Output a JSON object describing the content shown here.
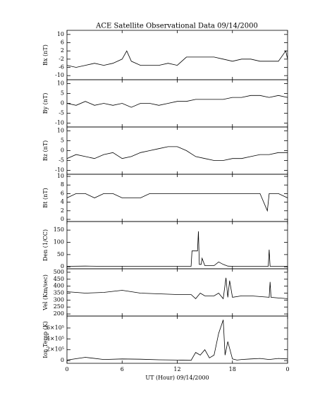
{
  "chart_data": [
    {
      "type": "line",
      "title": "ACE Satellite Observational Data  09/14/2000",
      "ylabel": "Bx (nT)",
      "xlim": [
        0,
        24
      ],
      "ylim": [
        -12,
        12
      ],
      "yticks": [
        10,
        6,
        2,
        -2,
        -6,
        -10
      ],
      "x": [
        0,
        1,
        2,
        3,
        4,
        5,
        6,
        6.5,
        7,
        8,
        9,
        10,
        11,
        12,
        13,
        14,
        15,
        16,
        17,
        18,
        19,
        20,
        21,
        22,
        23,
        23.8,
        24
      ],
      "values": [
        -5,
        -6,
        -5,
        -4,
        -5,
        -4,
        -2,
        2,
        -3,
        -5,
        -5,
        -5,
        -4,
        -5,
        -1,
        -1,
        -1,
        -1,
        -2,
        -3,
        -2,
        -2,
        -3,
        -3,
        -3,
        2,
        -2
      ]
    },
    {
      "type": "line",
      "ylabel": "By (nT)",
      "xlim": [
        0,
        24
      ],
      "ylim": [
        -12,
        12
      ],
      "yticks": [
        10,
        5,
        0,
        -5,
        -10
      ],
      "x": [
        0,
        1,
        2,
        3,
        4,
        5,
        6,
        7,
        8,
        9,
        10,
        11,
        12,
        13,
        14,
        15,
        16,
        17,
        18,
        19,
        20,
        21,
        22,
        23,
        24
      ],
      "values": [
        0,
        -1,
        1,
        -1,
        0,
        -1,
        0,
        -2,
        0,
        0,
        -1,
        0,
        1,
        1,
        2,
        2,
        2,
        2,
        3,
        3,
        4,
        4,
        3,
        4,
        3
      ]
    },
    {
      "type": "line",
      "ylabel": "Bz (nT)",
      "xlim": [
        0,
        24
      ],
      "ylim": [
        -12,
        12
      ],
      "yticks": [
        10,
        5,
        0,
        -5,
        -10
      ],
      "x": [
        0,
        1,
        2,
        3,
        4,
        5,
        6,
        7,
        8,
        9,
        10,
        11,
        12,
        13,
        14,
        15,
        16,
        17,
        18,
        19,
        20,
        21,
        22,
        23,
        24
      ],
      "values": [
        -4,
        -2,
        -3,
        -4,
        -2,
        -1,
        -4,
        -3,
        -1,
        0,
        1,
        2,
        2,
        0,
        -3,
        -4,
        -5,
        -5,
        -4,
        -4,
        -3,
        -2,
        -2,
        -1,
        -1
      ]
    },
    {
      "type": "line",
      "ylabel": "Bt (nT)",
      "xlim": [
        0,
        24
      ],
      "ylim": [
        -0.5,
        10.5
      ],
      "yticks": [
        0,
        2,
        4,
        6,
        8,
        10
      ],
      "x": [
        0,
        1,
        2,
        3,
        4,
        5,
        6,
        7,
        8,
        9,
        10,
        11,
        12,
        13,
        14,
        15,
        16,
        17,
        18,
        19,
        20,
        21,
        21.8,
        22,
        23,
        24
      ],
      "values": [
        5,
        6,
        6,
        5,
        6,
        6,
        5,
        5,
        5,
        6,
        6,
        6,
        6,
        6,
        6,
        6,
        6,
        6,
        6,
        6,
        6,
        6,
        2,
        6,
        6,
        5
      ]
    },
    {
      "type": "line",
      "ylabel": "Den (1/CC)",
      "xlim": [
        0,
        24
      ],
      "ylim": [
        -8,
        185
      ],
      "yticks": [
        0,
        50,
        100,
        150
      ],
      "x": [
        0,
        2,
        4,
        6,
        8,
        10,
        12,
        13.5,
        13.6,
        14.2,
        14.3,
        14.4,
        14.6,
        14.7,
        15,
        15.5,
        16,
        16.5,
        17,
        17.5,
        18,
        19,
        20,
        21,
        21.9,
        22,
        22.1,
        23,
        24
      ],
      "values": [
        2,
        3,
        2,
        2,
        2,
        2,
        2,
        2,
        65,
        65,
        145,
        10,
        10,
        35,
        5,
        5,
        5,
        20,
        10,
        3,
        2,
        2,
        2,
        2,
        2,
        70,
        2,
        2,
        2
      ]
    },
    {
      "type": "line",
      "ylabel": "Vel (Km/sec)",
      "xlim": [
        0,
        24
      ],
      "ylim": [
        185,
        525
      ],
      "yticks": [
        200,
        250,
        300,
        350,
        400,
        450,
        500
      ],
      "x": [
        0,
        2,
        4,
        6,
        8,
        10,
        12,
        13.5,
        14,
        14.5,
        15,
        15.5,
        16,
        16.5,
        17,
        17.3,
        17.5,
        17.7,
        18,
        19,
        20,
        21,
        22,
        22.1,
        22.2,
        23,
        24
      ],
      "values": [
        360,
        350,
        355,
        370,
        350,
        345,
        340,
        340,
        310,
        350,
        330,
        330,
        330,
        350,
        310,
        460,
        320,
        440,
        320,
        330,
        330,
        325,
        320,
        430,
        320,
        315,
        310
      ]
    },
    {
      "type": "line",
      "ylabel": "Ion Temp (K)",
      "xlabel": "UT (Hour)  09/14/2000",
      "xlim": [
        0,
        24
      ],
      "ylim": [
        -50000,
        820000
      ],
      "yticks": [
        0,
        {
          "value": 200000,
          "label": "2×10⁵"
        },
        {
          "value": 400000,
          "label": "4×10⁵"
        },
        {
          "value": 600000,
          "label": "6×10⁵"
        }
      ],
      "xticks": [
        0,
        6,
        12,
        18,
        {
          "value": 24,
          "label": "0"
        }
      ],
      "x": [
        0,
        2,
        4,
        6,
        8,
        10,
        12,
        13.5,
        14,
        14.5,
        15,
        15.5,
        16,
        16.5,
        17,
        17.2,
        17.5,
        18,
        18.5,
        19,
        20,
        21,
        22,
        23,
        24
      ],
      "values": [
        10000,
        60000,
        20000,
        30000,
        25000,
        15000,
        10000,
        5000,
        150000,
        100000,
        200000,
        50000,
        100000,
        500000,
        750000,
        100000,
        350000,
        30000,
        10000,
        20000,
        30000,
        40000,
        20000,
        40000,
        30000
      ]
    }
  ]
}
